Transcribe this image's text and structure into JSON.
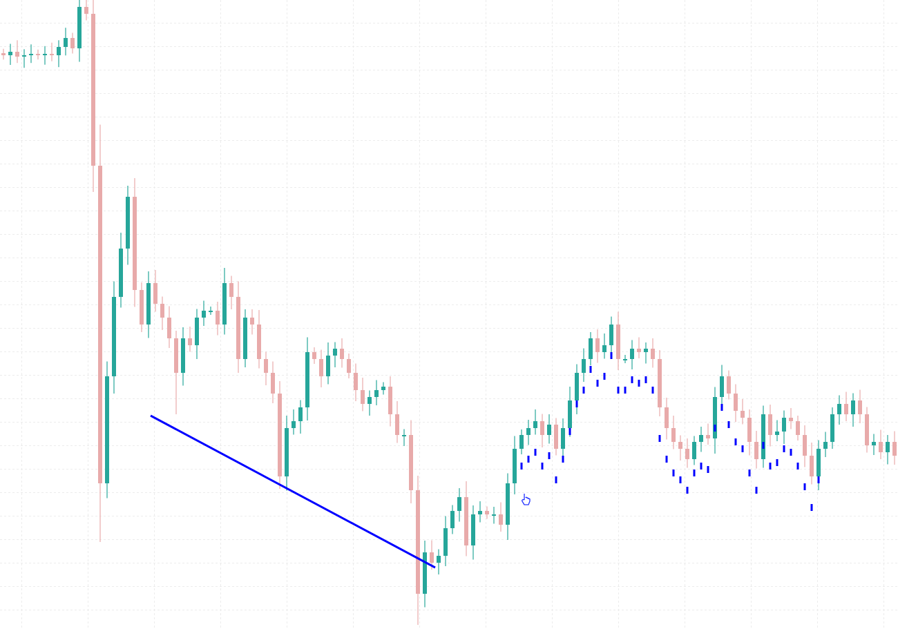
{
  "chart_data": {
    "type": "candlestick",
    "title": "",
    "xlabel": "",
    "ylabel": "",
    "ylim": [
      0,
      91.1
    ],
    "grid": true,
    "legend": "none",
    "colors": {
      "up": "#26a69a",
      "down": "#e8aaaa",
      "markers": "#0000ff",
      "trendline": "#0000ff"
    },
    "first_open": 83.4,
    "closes": [
      83.1,
      83.6,
      82.9,
      83.1,
      83.3,
      83.1,
      83.3,
      83.1,
      84.3,
      85.6,
      84.1,
      90.1,
      89.1,
      67.1,
      21.1,
      36.6,
      48.1,
      55.1,
      62.6,
      49.1,
      44.1,
      50.1,
      47.1,
      45.1,
      42.1,
      37.1,
      42.1,
      41.1,
      45.1,
      46.1,
      46.1,
      44.1,
      50.1,
      48.1,
      39.1,
      45.1,
      44.1,
      39.1,
      37.1,
      34.1,
      22.1,
      29.1,
      30.1,
      32.1,
      40.1,
      39.1,
      36.6,
      39.6,
      40.6,
      39.1,
      37.1,
      34.6,
      32.6,
      33.6,
      34.6,
      35.1,
      31.1,
      28.1,
      28.1,
      20.1,
      5.1,
      11.1,
      9.6,
      10.6,
      14.6,
      17.1,
      19.1,
      12.1,
      16.6,
      17.1,
      16.6,
      16.6,
      15.1,
      21.1,
      26.1,
      28.1,
      29.1,
      30.1,
      28.1,
      29.6,
      26.1,
      29.1,
      33.1,
      37.1,
      39.1,
      42.1,
      40.1,
      41.1,
      44.1,
      39.1,
      39.1,
      40.6,
      40.1,
      40.6,
      39.1,
      32.1,
      29.1,
      27.1,
      26.1,
      24.6,
      27.1,
      28.1,
      27.6,
      33.6,
      36.6,
      34.1,
      31.6,
      30.6,
      27.1,
      24.6,
      31.1,
      28.1,
      28.6,
      30.6,
      30.1,
      28.1,
      25.1,
      22.1,
      26.1,
      27.1,
      31.1,
      32.6,
      31.1,
      33.1,
      31.1,
      26.6,
      27.1,
      25.6,
      27.1,
      25.1
    ],
    "extreme_lows": [
      {
        "i": 14,
        "v": 12.6
      },
      {
        "i": 60,
        "v": 0.6
      },
      {
        "i": 25,
        "v": 31.1
      }
    ],
    "markers": {
      "start_index": 75,
      "values": [
        23.6,
        24.6,
        25.6,
        23.6,
        25.1,
        21.6,
        24.6,
        28.6,
        32.6,
        34.6,
        37.6,
        35.6,
        36.6,
        39.6,
        34.6,
        34.6,
        36.1,
        35.6,
        36.1,
        34.6,
        27.6,
        24.6,
        22.6,
        21.6,
        20.1,
        22.6,
        23.6,
        23.1,
        29.1,
        32.1,
        29.6,
        27.1,
        26.1,
        22.6,
        20.1,
        26.6,
        23.6,
        24.1,
        26.1,
        25.6,
        23.6,
        20.6,
        17.6,
        21.6
      ]
    },
    "trendline": [
      {
        "i": 21.3,
        "v": 30.9
      },
      {
        "i": 62.5,
        "v": 8.9
      }
    ]
  },
  "cursor": {
    "icon": "hand-pointer-icon"
  }
}
